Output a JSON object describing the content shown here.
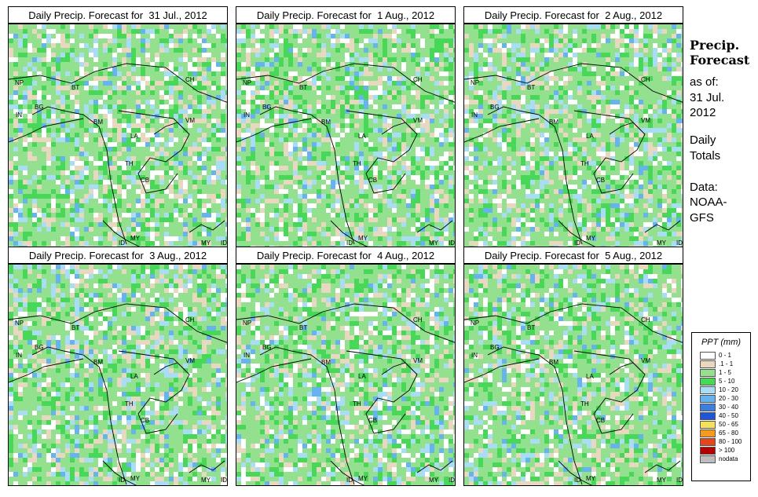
{
  "panels": [
    {
      "title": "Daily Precip. Forecast for  31 Jul., 2012"
    },
    {
      "title": "Daily Precip. Forecast for  1 Aug., 2012"
    },
    {
      "title": "Daily Precip. Forecast for  2 Aug., 2012"
    },
    {
      "title": "Daily Precip. Forecast for  3 Aug., 2012"
    },
    {
      "title": "Daily Precip. Forecast for  4 Aug., 2012"
    },
    {
      "title": "Daily Precip. Forecast for  5 Aug., 2012"
    }
  ],
  "map_labels": [
    "NP",
    "BT",
    "IN",
    "BG",
    "BM",
    "CH",
    "VM",
    "LA",
    "TH",
    "CB",
    "MY",
    "ID",
    "MY",
    "ID"
  ],
  "side": {
    "title_line1": "Precip.",
    "title_line2": "Forecast",
    "as_of": "as of:",
    "date_line1": "31 Jul.",
    "date_line2": "2012",
    "daily": "Daily",
    "totals": "Totals",
    "data_label": "Data:",
    "source1": "NOAA-",
    "source2": "GFS"
  },
  "legend": {
    "title": "PPT (mm)",
    "items": [
      {
        "label": "0 - 1",
        "color": "#ffffff"
      },
      {
        "label": ".1 - 1",
        "color": "#e9d8bf"
      },
      {
        "label": "1 - 5",
        "color": "#93e08f"
      },
      {
        "label": "5 - 10",
        "color": "#47d857"
      },
      {
        "label": "10 - 20",
        "color": "#a9dcf5"
      },
      {
        "label": "20 - 30",
        "color": "#66b3ef"
      },
      {
        "label": "30 - 40",
        "color": "#3b7fe0"
      },
      {
        "label": "40 - 50",
        "color": "#1f55d6"
      },
      {
        "label": "50 - 65",
        "color": "#f5e05a"
      },
      {
        "label": "65 - 80",
        "color": "#f59a1c"
      },
      {
        "label": "80 - 100",
        "color": "#e8431a"
      },
      {
        "label": "> 100",
        "color": "#b30000"
      },
      {
        "label": "nodata",
        "color": "#bdbdbd"
      }
    ]
  }
}
